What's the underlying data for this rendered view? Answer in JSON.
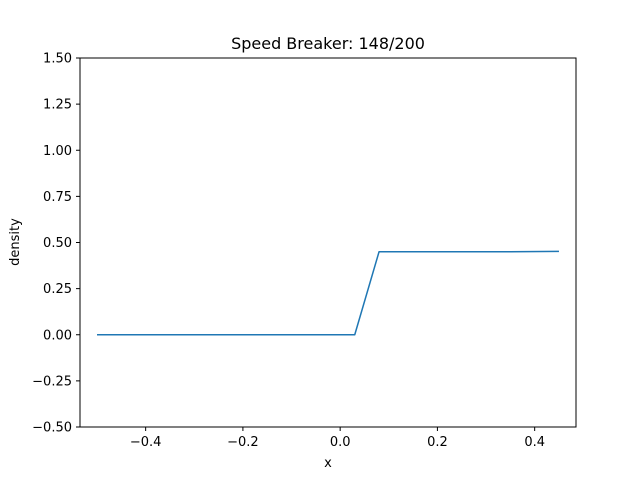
{
  "chart_data": {
    "type": "line",
    "title": "Speed Breaker: 148/200",
    "xlabel": "x",
    "ylabel": "density",
    "xlim": [
      -0.535,
      0.485
    ],
    "ylim": [
      -0.5,
      1.5
    ],
    "xticks": [
      -0.4,
      -0.2,
      0.0,
      0.2,
      0.4
    ],
    "xtick_labels": [
      "−0.4",
      "−0.2",
      "0.0",
      "0.2",
      "0.4"
    ],
    "yticks": [
      -0.5,
      -0.25,
      0.0,
      0.25,
      0.5,
      0.75,
      1.0,
      1.25,
      1.5
    ],
    "ytick_labels": [
      "−0.50",
      "−0.25",
      "0.00",
      "0.25",
      "0.50",
      "0.75",
      "1.00",
      "1.25",
      "1.50"
    ],
    "grid": false,
    "series": [
      {
        "name": "density",
        "color": "#1f77b4",
        "x": [
          -0.5,
          0.0,
          0.03,
          0.08,
          0.35,
          0.45
        ],
        "y": [
          0.0,
          0.0,
          0.0,
          0.45,
          0.45,
          0.452
        ]
      }
    ]
  }
}
